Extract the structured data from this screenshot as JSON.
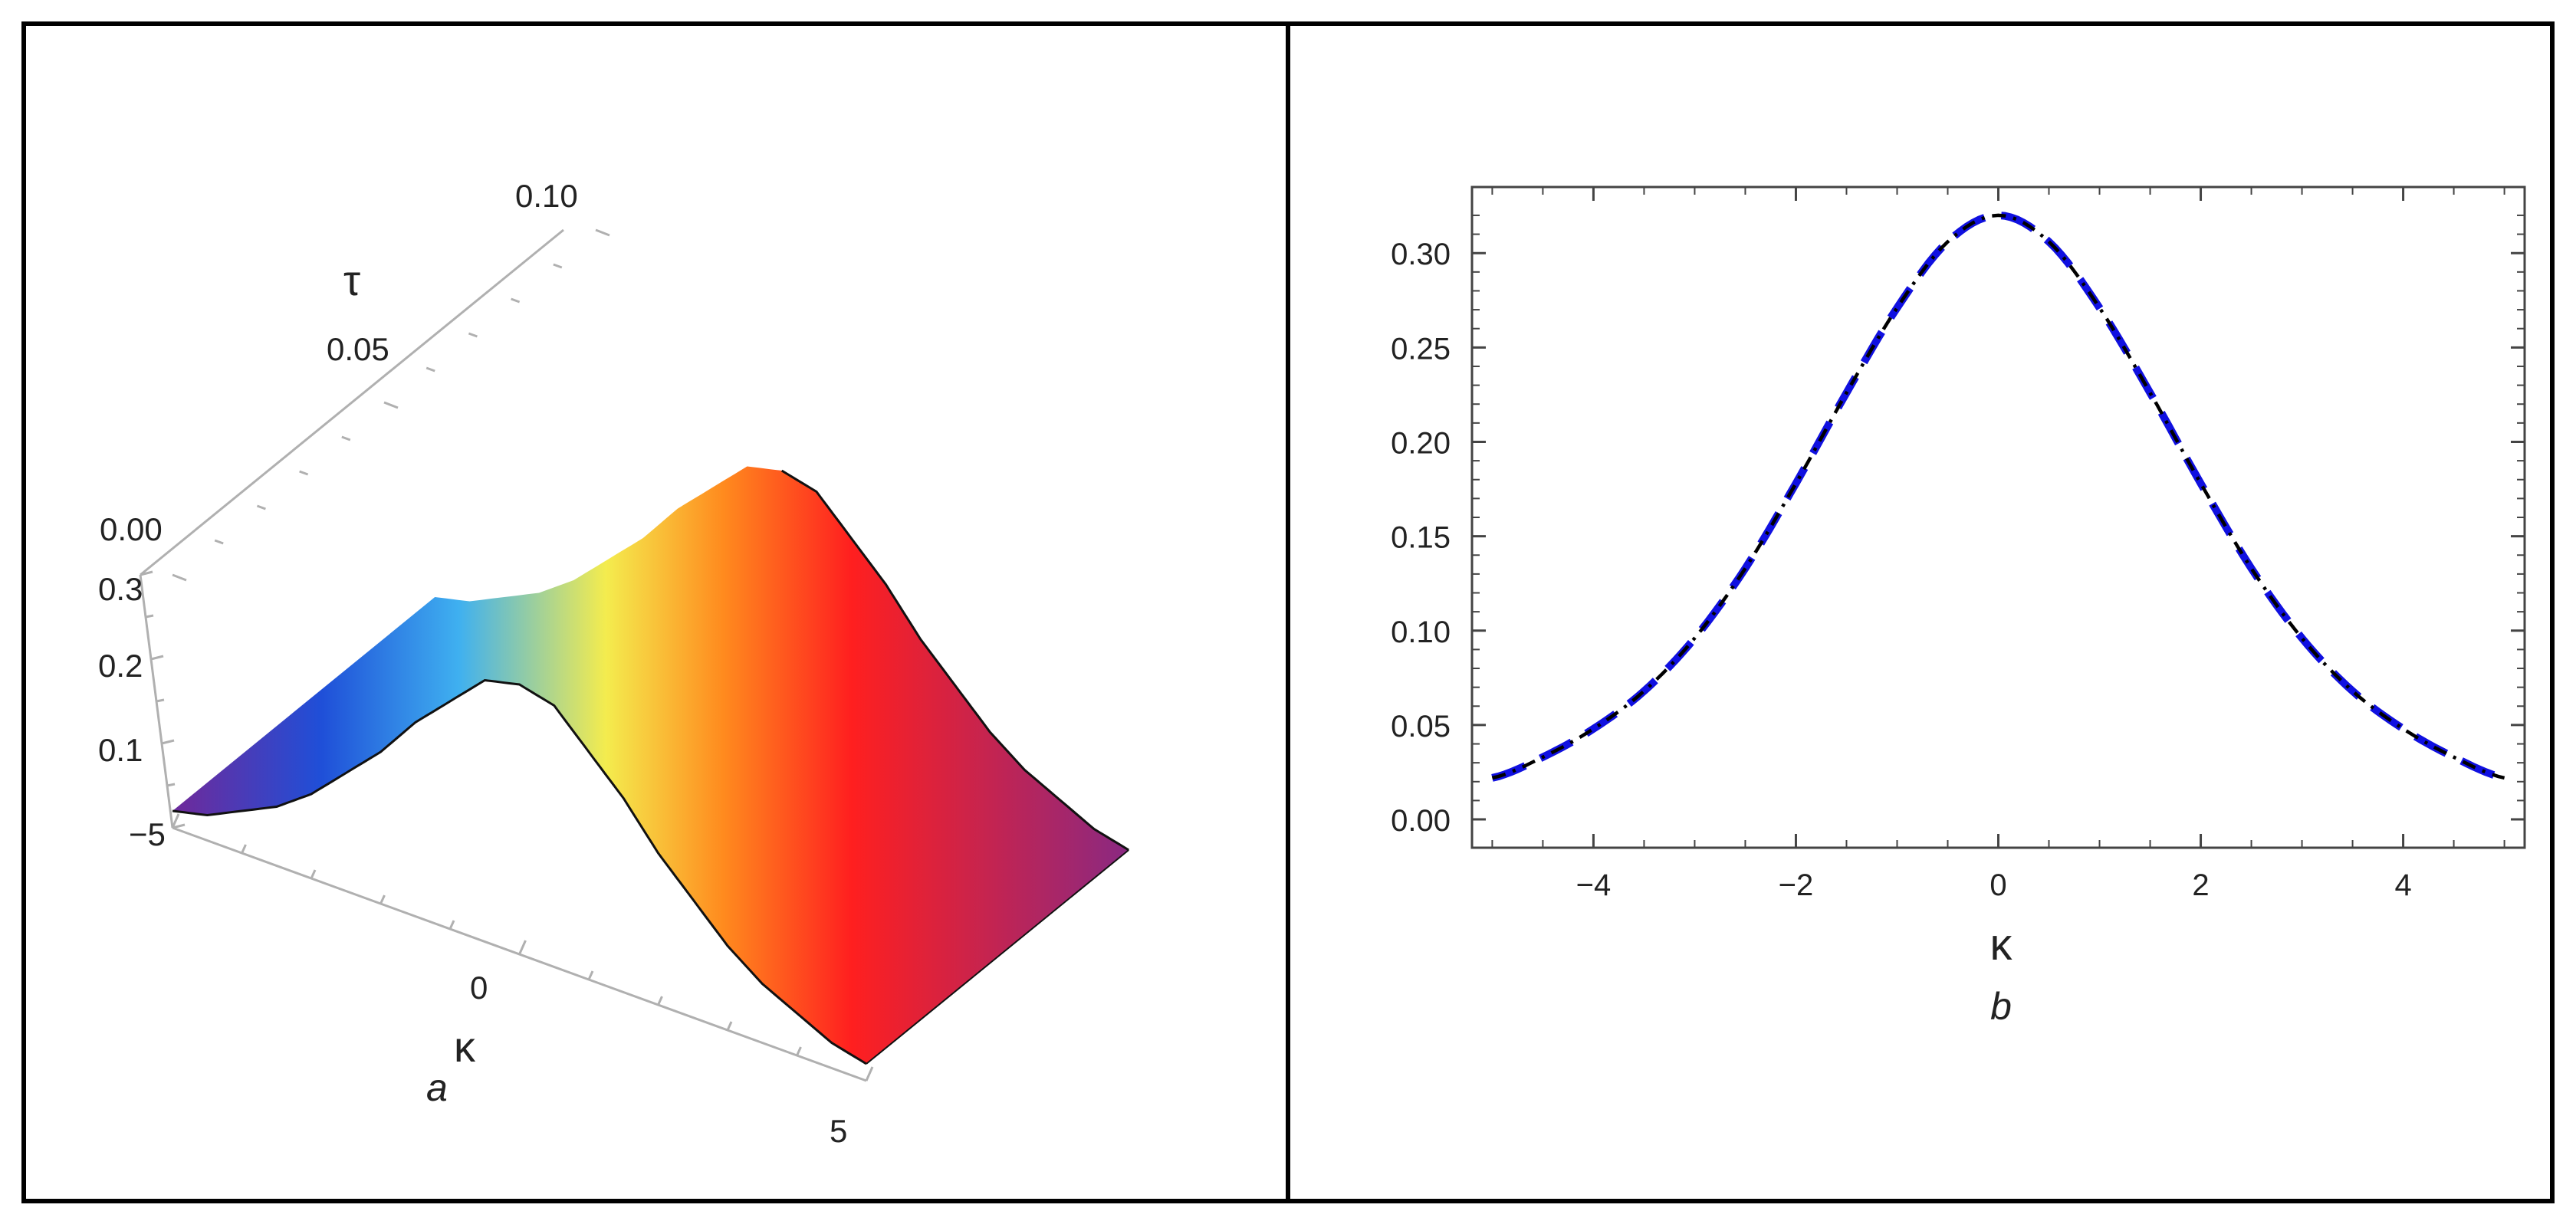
{
  "chart_data": [
    {
      "panel_label": "a",
      "type": "surface3d",
      "x_axis": {
        "label": "κ",
        "range": [
          -5,
          5
        ],
        "tick_labels": [
          "−5",
          "0",
          "5"
        ]
      },
      "y_axis": {
        "label": "τ",
        "range": [
          0,
          0.1
        ],
        "tick_labels": [
          "0.00",
          "0.05",
          "0.10"
        ]
      },
      "z_axis": {
        "label": "",
        "range": [
          0,
          0.3
        ],
        "tick_labels": [
          "0.1",
          "0.2",
          "0.3"
        ]
      },
      "surface": {
        "x": [
          -5,
          -4.5,
          -4,
          -3.5,
          -3,
          -2.5,
          -2,
          -1.5,
          -1,
          -0.5,
          0,
          0.5,
          1,
          1.5,
          2,
          2.5,
          3,
          3.5,
          4,
          4.5,
          5
        ],
        "z": [
          0.02,
          0.03,
          0.05,
          0.07,
          0.1,
          0.14,
          0.18,
          0.23,
          0.27,
          0.31,
          0.32,
          0.31,
          0.27,
          0.23,
          0.18,
          0.14,
          0.1,
          0.07,
          0.05,
          0.03,
          0.02
        ]
      },
      "colormap": [
        "#6a2c9e",
        "#1f4fd8",
        "#3fb0f0",
        "#f4ec4e",
        "#ff8a1e",
        "#ff1f1f",
        "#7a2a8f"
      ]
    },
    {
      "panel_label": "b",
      "type": "line",
      "xlabel": "κ",
      "ylabel": "",
      "xlim": [
        -5.2,
        5.2
      ],
      "ylim": [
        -0.015,
        0.335
      ],
      "x_ticks": [
        -4,
        -2,
        0,
        2,
        4
      ],
      "x_tick_labels": [
        "−4",
        "−2",
        "0",
        "2",
        "4"
      ],
      "y_ticks": [
        0,
        0.05,
        0.1,
        0.15,
        0.2,
        0.25,
        0.3
      ],
      "y_tick_labels": [
        "0.00",
        "0.05",
        "0.10",
        "0.15",
        "0.20",
        "0.25",
        "0.30"
      ],
      "x": [
        -5,
        -4.5,
        -4,
        -3.5,
        -3,
        -2.5,
        -2,
        -1.5,
        -1,
        -0.5,
        0,
        0.5,
        1,
        1.5,
        2,
        2.5,
        3,
        3.5,
        4,
        4.5,
        5
      ],
      "series": [
        {
          "style": "dashed",
          "color": "#1010e0",
          "values": [
            0.022,
            0.033,
            0.048,
            0.068,
            0.096,
            0.133,
            0.178,
            0.226,
            0.271,
            0.306,
            0.32,
            0.306,
            0.271,
            0.226,
            0.178,
            0.133,
            0.096,
            0.068,
            0.048,
            0.033,
            0.022
          ]
        },
        {
          "style": "dash-dot",
          "color": "#000000",
          "values": [
            0.022,
            0.033,
            0.048,
            0.068,
            0.096,
            0.133,
            0.178,
            0.226,
            0.271,
            0.306,
            0.32,
            0.306,
            0.271,
            0.226,
            0.178,
            0.133,
            0.096,
            0.068,
            0.048,
            0.033,
            0.022
          ]
        }
      ]
    }
  ]
}
